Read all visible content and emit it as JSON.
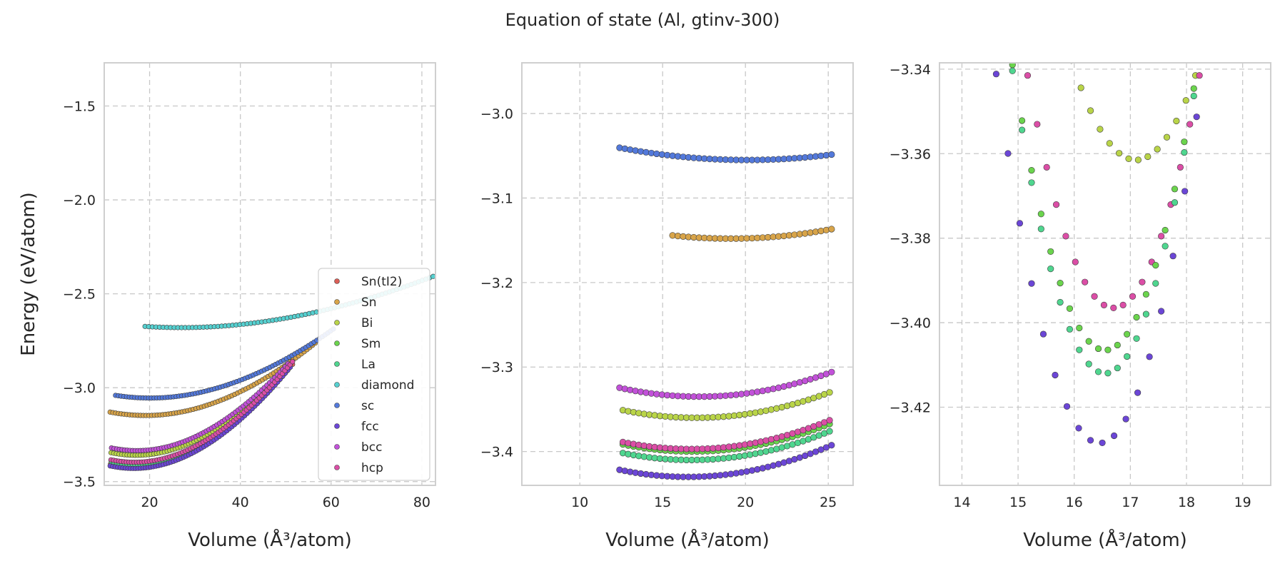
{
  "title": "Equation of state (Al, gtinv-300)",
  "colors": {
    "Sn(tI2)": "#db5f57",
    "Sn": "#d8a449",
    "Bi": "#b9d448",
    "Sm": "#6bd44d",
    "La": "#4fd68f",
    "diamond": "#55d0d0",
    "sc": "#5379db",
    "fcc": "#6b46d6",
    "bcc": "#c251d9",
    "hcp": "#db4ea6"
  },
  "chart_data": [
    {
      "type": "scatter",
      "xlabel": "Volume (Å³/atom)",
      "ylabel": "Energy (eV/atom)",
      "xlim": [
        10,
        83
      ],
      "ylim": [
        -3.52,
        -1.27
      ],
      "xticks": [
        20,
        40,
        60,
        80
      ],
      "yticks": [
        -3.5,
        -3.0,
        -2.5,
        -2.0,
        -1.5
      ],
      "grid": true,
      "legend": "lower-right",
      "legend_entries": [
        "Sn(tI2)",
        "Sn",
        "Bi",
        "Sm",
        "La",
        "diamond",
        "sc",
        "fcc",
        "bcc",
        "hcp"
      ],
      "series": [
        {
          "name": "Sn(tI2)",
          "model": "eos",
          "e0": -3.42,
          "v0": 16.6,
          "k": 0.00825,
          "vmin": 11.4,
          "vmax": 51.5,
          "n": 70
        },
        {
          "name": "Sn",
          "model": "eos",
          "e0": -3.148,
          "v0": 19.1,
          "k": 0.0058,
          "vmin": 11.3,
          "vmax": 56.5,
          "n": 75
        },
        {
          "name": "Bi",
          "model": "eos",
          "e0": -3.36,
          "v0": 17.0,
          "k": 0.0079,
          "vmin": 11.5,
          "vmax": 51.0,
          "n": 68
        },
        {
          "name": "Sm",
          "model": "eos",
          "e0": -3.4,
          "v0": 16.8,
          "k": 0.0081,
          "vmin": 11.5,
          "vmax": 50.5,
          "n": 68
        },
        {
          "name": "La",
          "model": "eos",
          "e0": -3.41,
          "v0": 16.7,
          "k": 0.0082,
          "vmin": 11.6,
          "vmax": 50.0,
          "n": 68
        },
        {
          "name": "diamond",
          "model": "eos",
          "e0": -2.68,
          "v0": 27.0,
          "k": 0.00265,
          "vmin": 19.0,
          "vmax": 82.5,
          "n": 80
        },
        {
          "name": "sc",
          "model": "eos",
          "e0": -3.055,
          "v0": 20.1,
          "k": 0.005,
          "vmin": 12.5,
          "vmax": 60.5,
          "n": 80
        },
        {
          "name": "fcc",
          "model": "eos",
          "e0": -3.43,
          "v0": 16.5,
          "k": 0.0083,
          "vmin": 11.3,
          "vmax": 51.0,
          "n": 72
        },
        {
          "name": "bcc",
          "model": "eos",
          "e0": -3.335,
          "v0": 17.2,
          "k": 0.0079,
          "vmin": 11.6,
          "vmax": 50.5,
          "n": 68
        },
        {
          "name": "hcp",
          "model": "eos",
          "e0": -3.397,
          "v0": 16.7,
          "k": 0.0082,
          "vmin": 11.5,
          "vmax": 51.5,
          "n": 72
        }
      ]
    },
    {
      "type": "scatter",
      "xlabel": "Volume (Å³/atom)",
      "ylabel": "",
      "xlim": [
        6.5,
        26.5
      ],
      "ylim": [
        -3.44,
        -2.94
      ],
      "xticks": [
        10,
        15,
        20,
        25
      ],
      "yticks": [
        -3.4,
        -3.3,
        -3.2,
        -3.1,
        -3.0
      ],
      "grid": true,
      "series": [
        {
          "name": "sc",
          "model": "eos",
          "e0": -3.055,
          "v0": 20.1,
          "k": 0.005,
          "vmin": 12.4,
          "vmax": 25.2,
          "step": 0.32
        },
        {
          "name": "Sn",
          "model": "eos",
          "e0": -3.148,
          "v0": 19.1,
          "k": 0.0058,
          "vmin": 15.6,
          "vmax": 25.2,
          "step": 0.32
        },
        {
          "name": "bcc",
          "model": "eos",
          "e0": -3.335,
          "v0": 17.2,
          "k": 0.0079,
          "vmin": 12.4,
          "vmax": 25.2,
          "step": 0.32
        },
        {
          "name": "Bi",
          "model": "eos",
          "e0": -3.36,
          "v0": 17.0,
          "k": 0.0079,
          "vmin": 12.6,
          "vmax": 25.2,
          "step": 0.32
        },
        {
          "name": "Sm",
          "model": "eos",
          "e0": -3.4,
          "v0": 16.8,
          "k": 0.0081,
          "vmin": 12.6,
          "vmax": 25.2,
          "step": 0.32
        },
        {
          "name": "La",
          "model": "eos",
          "e0": -3.41,
          "v0": 16.7,
          "k": 0.0082,
          "vmin": 12.6,
          "vmax": 25.2,
          "step": 0.32
        },
        {
          "name": "hcp",
          "model": "eos",
          "e0": -3.397,
          "v0": 16.7,
          "k": 0.0082,
          "vmin": 12.6,
          "vmax": 25.2,
          "step": 0.32
        },
        {
          "name": "fcc",
          "model": "eos",
          "e0": -3.43,
          "v0": 16.5,
          "k": 0.0083,
          "vmin": 12.4,
          "vmax": 25.2,
          "step": 0.32
        }
      ]
    },
    {
      "type": "scatter",
      "xlabel": "Volume (Å³/atom)",
      "ylabel": "",
      "xlim": [
        13.6,
        19.5
      ],
      "ylim": [
        -3.4385,
        -3.3385
      ],
      "xticks": [
        14,
        15,
        16,
        17,
        18,
        19
      ],
      "yticks": [
        -3.42,
        -3.4,
        -3.38,
        -3.36,
        -3.34
      ],
      "grid": true,
      "series": [
        {
          "name": "Bi",
          "model": "parabola",
          "e0": -3.3615,
          "v0": 17.1,
          "a": 0.0178,
          "vmin": 15.95,
          "vmax": 18.55,
          "step": 0.17
        },
        {
          "name": "hcp",
          "model": "parabola",
          "e0": -3.3965,
          "v0": 16.7,
          "a": 0.0235,
          "vmin": 15.0,
          "vmax": 18.8,
          "step": 0.17
        },
        {
          "name": "Sm",
          "model": "parabola",
          "e0": -3.4065,
          "v0": 16.55,
          "a": 0.0248,
          "vmin": 14.9,
          "vmax": 18.7,
          "step": 0.17
        },
        {
          "name": "La",
          "model": "parabola",
          "e0": -3.412,
          "v0": 16.55,
          "a": 0.0263,
          "vmin": 14.9,
          "vmax": 18.65,
          "step": 0.17
        },
        {
          "name": "fcc",
          "model": "parabola",
          "e0": -3.4285,
          "v0": 16.45,
          "a": 0.0258,
          "vmin": 14.4,
          "vmax": 19.05,
          "step": 0.21
        }
      ]
    }
  ]
}
